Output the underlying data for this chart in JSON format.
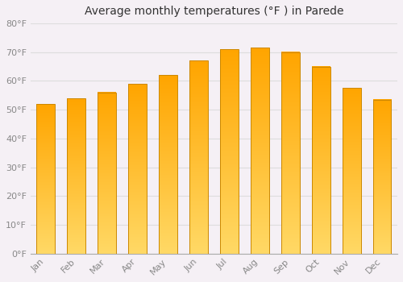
{
  "title": "Average monthly temperatures (°F ) in Parede",
  "months": [
    "Jan",
    "Feb",
    "Mar",
    "Apr",
    "May",
    "Jun",
    "Jul",
    "Aug",
    "Sep",
    "Oct",
    "Nov",
    "Dec"
  ],
  "values": [
    52,
    54,
    56,
    59,
    62,
    67,
    71,
    71.5,
    70,
    65,
    57.5,
    53.5
  ],
  "ylim": [
    0,
    80
  ],
  "yticks": [
    0,
    10,
    20,
    30,
    40,
    50,
    60,
    70,
    80
  ],
  "ytick_labels": [
    "0°F",
    "10°F",
    "20°F",
    "30°F",
    "40°F",
    "50°F",
    "60°F",
    "70°F",
    "80°F"
  ],
  "title_fontsize": 10,
  "tick_fontsize": 8,
  "background_color": "#f5f0f5",
  "plot_bg_color": "#f5f0f5",
  "grid_color": "#dddddd",
  "bar_color_top": "#FFA500",
  "bar_color_bottom": "#FFD966",
  "bar_edge_color": "#cc8800",
  "bar_width": 0.6
}
